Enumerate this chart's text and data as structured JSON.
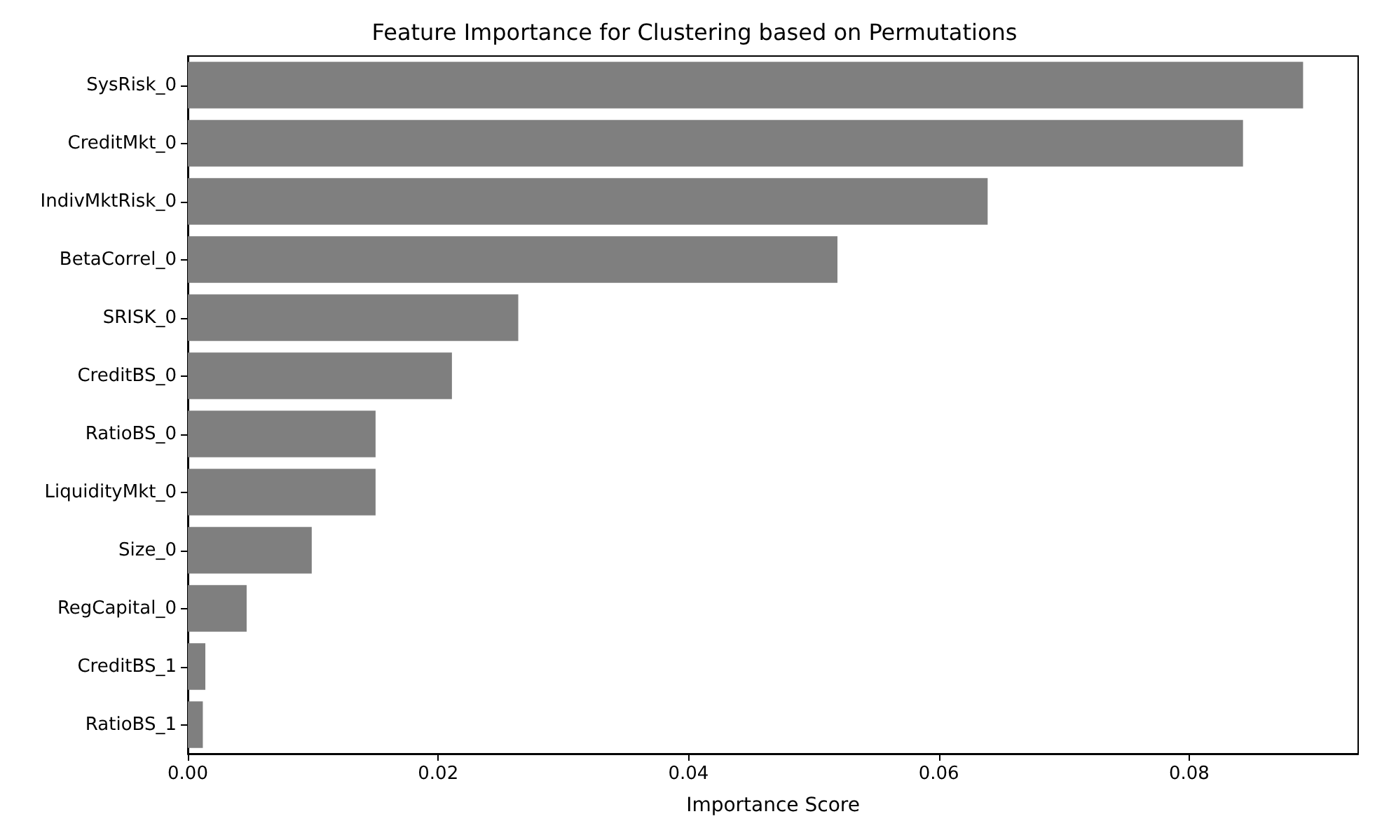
{
  "chart_data": {
    "type": "bar",
    "orientation": "horizontal",
    "title": "Feature Importance for Clustering based on Permutations",
    "xlabel": "Importance Score",
    "categories": [
      "SysRisk_0",
      "CreditMkt_0",
      "IndivMktRisk_0",
      "BetaCorrel_0",
      "SRISK_0",
      "CreditBS_0",
      "RatioBS_0",
      "LiquidityMkt_0",
      "Size_0",
      "RegCapital_0",
      "CreditBS_1",
      "RatioBS_1"
    ],
    "values": [
      0.0891,
      0.0843,
      0.0639,
      0.0519,
      0.0264,
      0.0211,
      0.015,
      0.015,
      0.0099,
      0.0047,
      0.0014,
      0.0012
    ],
    "color": "#7f7f7f",
    "xlim": [
      0,
      0.0935
    ],
    "xticks": [
      {
        "value": 0,
        "label": "0.00"
      },
      {
        "value": 0.02,
        "label": "0.02"
      },
      {
        "value": 0.04,
        "label": "0.04"
      },
      {
        "value": 0.06,
        "label": "0.06"
      },
      {
        "value": 0.08,
        "label": "0.08"
      }
    ],
    "grid": false
  }
}
